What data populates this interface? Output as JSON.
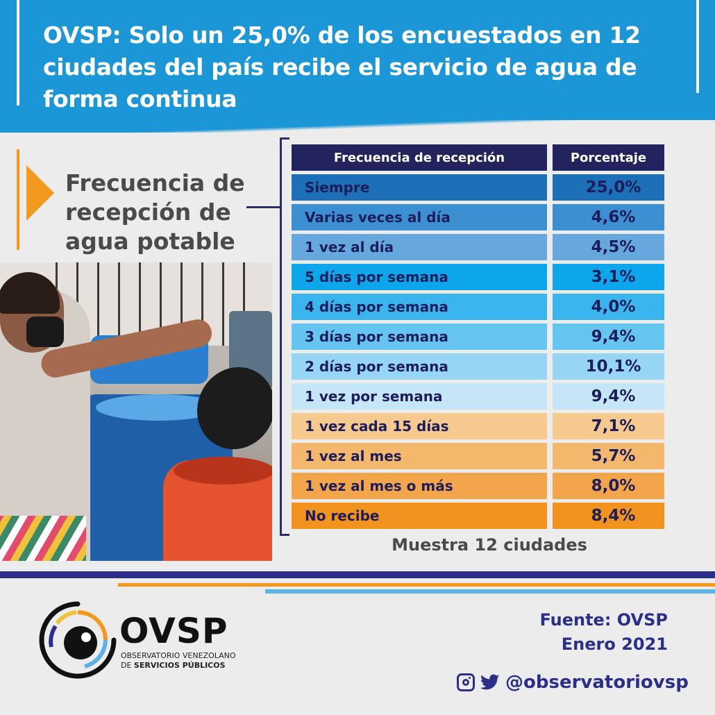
{
  "header": {
    "title": "OVSP:  Solo un 25,0% de los encuestados en 12 ciudades del país recibe el servicio de agua de forma continua"
  },
  "subtitle": "Frecuencia de recepción de agua potable",
  "chart_data": {
    "type": "table",
    "columns": [
      "Frecuencia de recepción",
      "Porcentaje"
    ],
    "rows": [
      {
        "label": "Siempre",
        "value": "25,0%",
        "color": "#1d70b8"
      },
      {
        "label": "Varias veces al día",
        "value": "4,6%",
        "color": "#3c8fd0"
      },
      {
        "label": "1 vez al día",
        "value": "4,5%",
        "color": "#66a7de"
      },
      {
        "label": "5 días por semana",
        "value": "3,1%",
        "color": "#0da6ea"
      },
      {
        "label": "4 días por semana",
        "value": "4,0%",
        "color": "#3ab5ee"
      },
      {
        "label": "3 días por semana",
        "value": "9,4%",
        "color": "#66c4f1"
      },
      {
        "label": "2 días por semana",
        "value": "10,1%",
        "color": "#96d5f4"
      },
      {
        "label": "1 vez por semana",
        "value": "9,4%",
        "color": "#c5e6f7"
      },
      {
        "label": "1 vez cada 15 días",
        "value": "7,1%",
        "color": "#f6c98f"
      },
      {
        "label": "1 vez al mes",
        "value": "5,7%",
        "color": "#f4b86d"
      },
      {
        "label": "1 vez al mes o más",
        "value": "8,0%",
        "color": "#f2a54a"
      },
      {
        "label": "No recibe",
        "value": "8,4%",
        "color": "#f29320"
      }
    ],
    "note": "Muestra 12 ciudades"
  },
  "logo": {
    "name": "OVSP",
    "sub_line1": "OBSERVATORIO VENEZOLANO",
    "sub_line2_prefix": "DE ",
    "sub_line2_bold": "SERVICIOS PÚBLICOS"
  },
  "footer": {
    "source": "Fuente: OVSP",
    "date": "Enero 2021",
    "handle": "@observatoriovsp",
    "icons": [
      "instagram-icon",
      "twitter-icon"
    ]
  }
}
